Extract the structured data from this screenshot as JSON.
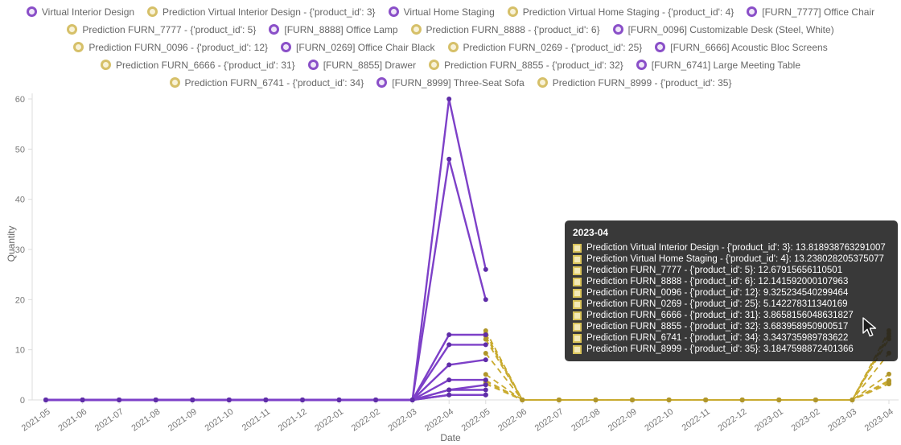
{
  "chart_data": {
    "type": "line",
    "title": "",
    "xlabel": "Date",
    "ylabel": "Quantity",
    "ylim": [
      0,
      60
    ],
    "yticks": [
      0,
      10,
      20,
      30,
      40,
      50,
      60
    ],
    "grid": false,
    "legend_position": "top",
    "colors": {
      "actual": "#7d40c8",
      "actual_point": "#5f2da8",
      "prediction": "#c9ab2f",
      "prediction_point": "#b0962a"
    },
    "x": [
      "2021-05",
      "2021-06",
      "2021-07",
      "2021-08",
      "2021-09",
      "2021-10",
      "2021-11",
      "2021-12",
      "2022-01",
      "2022-02",
      "2022-03",
      "2022-04",
      "2022-05",
      "2022-06",
      "2022-07",
      "2022-08",
      "2022-09",
      "2022-10",
      "2022-11",
      "2022-12",
      "2023-01",
      "2023-02",
      "2023-03",
      "2023-04"
    ],
    "series": [
      {
        "name": "Virtual Interior Design",
        "kind": "actual",
        "values": [
          0,
          0,
          0,
          0,
          0,
          0,
          0,
          0,
          0,
          0,
          0,
          60,
          26,
          null,
          null,
          null,
          null,
          null,
          null,
          null,
          null,
          null,
          null,
          null
        ]
      },
      {
        "name": "Virtual Home Staging",
        "kind": "actual",
        "values": [
          0,
          0,
          0,
          0,
          0,
          0,
          0,
          0,
          0,
          0,
          0,
          48,
          20,
          null,
          null,
          null,
          null,
          null,
          null,
          null,
          null,
          null,
          null,
          null
        ]
      },
      {
        "name": "[FURN_7777] Office Chair",
        "kind": "actual",
        "values": [
          0,
          0,
          0,
          0,
          0,
          0,
          0,
          0,
          0,
          0,
          0,
          13,
          13,
          null,
          null,
          null,
          null,
          null,
          null,
          null,
          null,
          null,
          null,
          null
        ]
      },
      {
        "name": "[FURN_8888] Office Lamp",
        "kind": "actual",
        "values": [
          0,
          0,
          0,
          0,
          0,
          0,
          0,
          0,
          0,
          0,
          0,
          11,
          11,
          null,
          null,
          null,
          null,
          null,
          null,
          null,
          null,
          null,
          null,
          null
        ]
      },
      {
        "name": "[FURN_0096] Customizable Desk (Steel, White)",
        "kind": "actual",
        "values": [
          0,
          0,
          0,
          0,
          0,
          0,
          0,
          0,
          0,
          0,
          0,
          7,
          8,
          null,
          null,
          null,
          null,
          null,
          null,
          null,
          null,
          null,
          null,
          null
        ]
      },
      {
        "name": "[FURN_0269] Office Chair Black",
        "kind": "actual",
        "values": [
          0,
          0,
          0,
          0,
          0,
          0,
          0,
          0,
          0,
          0,
          0,
          4,
          4,
          null,
          null,
          null,
          null,
          null,
          null,
          null,
          null,
          null,
          null,
          null
        ]
      },
      {
        "name": "[FURN_6666] Acoustic Bloc Screens",
        "kind": "actual",
        "values": [
          0,
          0,
          0,
          0,
          0,
          0,
          0,
          0,
          0,
          0,
          0,
          2,
          3,
          null,
          null,
          null,
          null,
          null,
          null,
          null,
          null,
          null,
          null,
          null
        ]
      },
      {
        "name": "[FURN_8855] Drawer",
        "kind": "actual",
        "values": [
          0,
          0,
          0,
          0,
          0,
          0,
          0,
          0,
          0,
          0,
          0,
          2,
          2,
          null,
          null,
          null,
          null,
          null,
          null,
          null,
          null,
          null,
          null,
          null
        ]
      },
      {
        "name": "[FURN_6741] Large Meeting Table",
        "kind": "actual",
        "values": [
          0,
          0,
          0,
          0,
          0,
          0,
          0,
          0,
          0,
          0,
          0,
          1,
          1,
          null,
          null,
          null,
          null,
          null,
          null,
          null,
          null,
          null,
          null,
          null
        ]
      },
      {
        "name": "[FURN_8999] Three-Seat Sofa",
        "kind": "actual",
        "values": [
          0,
          0,
          0,
          0,
          0,
          0,
          0,
          0,
          0,
          0,
          0,
          1,
          1,
          null,
          null,
          null,
          null,
          null,
          null,
          null,
          null,
          null,
          null,
          null
        ]
      },
      {
        "name": "Prediction Virtual Interior Design - {'product_id': 3}",
        "kind": "prediction",
        "values": [
          null,
          null,
          null,
          null,
          null,
          null,
          null,
          null,
          null,
          null,
          null,
          null,
          13.8,
          0,
          0,
          0,
          0,
          0,
          0,
          0,
          0,
          0,
          0,
          13.818938763291007
        ]
      },
      {
        "name": "Prediction Virtual Home Staging - {'product_id': 4}",
        "kind": "prediction",
        "values": [
          null,
          null,
          null,
          null,
          null,
          null,
          null,
          null,
          null,
          null,
          null,
          null,
          13.2,
          0,
          0,
          0,
          0,
          0,
          0,
          0,
          0,
          0,
          0,
          13.238028205375077
        ]
      },
      {
        "name": "Prediction FURN_7777 - {'product_id': 5}",
        "kind": "prediction",
        "values": [
          null,
          null,
          null,
          null,
          null,
          null,
          null,
          null,
          null,
          null,
          null,
          null,
          12.7,
          0,
          0,
          0,
          0,
          0,
          0,
          0,
          0,
          0,
          0,
          12.67915656110501
        ]
      },
      {
        "name": "Prediction FURN_8888 - {'product_id': 6}",
        "kind": "prediction",
        "values": [
          null,
          null,
          null,
          null,
          null,
          null,
          null,
          null,
          null,
          null,
          null,
          null,
          12.1,
          0,
          0,
          0,
          0,
          0,
          0,
          0,
          0,
          0,
          0,
          12.141592000107963
        ]
      },
      {
        "name": "Prediction FURN_0096 - {'product_id': 12}",
        "kind": "prediction",
        "values": [
          null,
          null,
          null,
          null,
          null,
          null,
          null,
          null,
          null,
          null,
          null,
          null,
          9.3,
          0,
          0,
          0,
          0,
          0,
          0,
          0,
          0,
          0,
          0,
          9.325234540299464
        ]
      },
      {
        "name": "Prediction FURN_0269 - {'product_id': 25}",
        "kind": "prediction",
        "values": [
          null,
          null,
          null,
          null,
          null,
          null,
          null,
          null,
          null,
          null,
          null,
          null,
          5.1,
          0,
          0,
          0,
          0,
          0,
          0,
          0,
          0,
          0,
          0,
          5.142278311340169
        ]
      },
      {
        "name": "Prediction FURN_6666 - {'product_id': 31}",
        "kind": "prediction",
        "values": [
          null,
          null,
          null,
          null,
          null,
          null,
          null,
          null,
          null,
          null,
          null,
          null,
          3.9,
          0,
          0,
          0,
          0,
          0,
          0,
          0,
          0,
          0,
          0,
          3.8658156048631827
        ]
      },
      {
        "name": "Prediction FURN_8855 - {'product_id': 32}",
        "kind": "prediction",
        "values": [
          null,
          null,
          null,
          null,
          null,
          null,
          null,
          null,
          null,
          null,
          null,
          null,
          3.7,
          0,
          0,
          0,
          0,
          0,
          0,
          0,
          0,
          0,
          0,
          3.683958950900517
        ]
      },
      {
        "name": "Prediction FURN_6741 - {'product_id': 34}",
        "kind": "prediction",
        "values": [
          null,
          null,
          null,
          null,
          null,
          null,
          null,
          null,
          null,
          null,
          null,
          null,
          3.3,
          0,
          0,
          0,
          0,
          0,
          0,
          0,
          0,
          0,
          0,
          3.343735989783622
        ]
      },
      {
        "name": "Prediction FURN_8999 - {'product_id': 35}",
        "kind": "prediction",
        "values": [
          null,
          null,
          null,
          null,
          null,
          null,
          null,
          null,
          null,
          null,
          null,
          null,
          3.2,
          0,
          0,
          0,
          0,
          0,
          0,
          0,
          0,
          0,
          0,
          3.1847598872401366
        ]
      }
    ]
  },
  "legend": {
    "items": [
      {
        "label": "Virtual Interior Design",
        "kind": "actual"
      },
      {
        "label": "Prediction Virtual Interior Design - {'product_id': 3}",
        "kind": "prediction"
      },
      {
        "label": "Virtual Home Staging",
        "kind": "actual"
      },
      {
        "label": "Prediction Virtual Home Staging - {'product_id': 4}",
        "kind": "prediction"
      },
      {
        "label": "[FURN_7777] Office Chair",
        "kind": "actual"
      },
      {
        "label": "Prediction FURN_7777 - {'product_id': 5}",
        "kind": "prediction"
      },
      {
        "label": "[FURN_8888] Office Lamp",
        "kind": "actual"
      },
      {
        "label": "Prediction FURN_8888 - {'product_id': 6}",
        "kind": "prediction"
      },
      {
        "label": "[FURN_0096] Customizable Desk (Steel, White)",
        "kind": "actual"
      },
      {
        "label": "Prediction FURN_0096 - {'product_id': 12}",
        "kind": "prediction"
      },
      {
        "label": "[FURN_0269] Office Chair Black",
        "kind": "actual"
      },
      {
        "label": "Prediction FURN_0269 - {'product_id': 25}",
        "kind": "prediction"
      },
      {
        "label": "[FURN_6666] Acoustic Bloc Screens",
        "kind": "actual"
      },
      {
        "label": "Prediction FURN_6666 - {'product_id': 31}",
        "kind": "prediction"
      },
      {
        "label": "[FURN_8855] Drawer",
        "kind": "actual"
      },
      {
        "label": "Prediction FURN_8855 - {'product_id': 32}",
        "kind": "prediction"
      },
      {
        "label": "[FURN_6741] Large Meeting Table",
        "kind": "actual"
      },
      {
        "label": "Prediction FURN_6741 - {'product_id': 34}",
        "kind": "prediction"
      },
      {
        "label": "[FURN_8999] Three-Seat Sofa",
        "kind": "actual"
      },
      {
        "label": "Prediction FURN_8999 - {'product_id': 35}",
        "kind": "prediction"
      }
    ]
  },
  "tooltip": {
    "title": "2023-04",
    "rows": [
      {
        "label": "Prediction Virtual Interior Design - {'product_id': 3}",
        "value": "13.818938763291007"
      },
      {
        "label": "Prediction Virtual Home Staging - {'product_id': 4}",
        "value": "13.238028205375077"
      },
      {
        "label": "Prediction FURN_7777 - {'product_id': 5}",
        "value": "12.67915656110501"
      },
      {
        "label": "Prediction FURN_8888 - {'product_id': 6}",
        "value": "12.141592000107963"
      },
      {
        "label": "Prediction FURN_0096 - {'product_id': 12}",
        "value": "9.325234540299464"
      },
      {
        "label": "Prediction FURN_0269 - {'product_id': 25}",
        "value": "5.142278311340169"
      },
      {
        "label": "Prediction FURN_6666 - {'product_id': 31}",
        "value": "3.8658156048631827"
      },
      {
        "label": "Prediction FURN_8855 - {'product_id': 32}",
        "value": "3.683958950900517"
      },
      {
        "label": "Prediction FURN_6741 - {'product_id': 34}",
        "value": "3.343735989783622"
      },
      {
        "label": "Prediction FURN_8999 - {'product_id': 35}",
        "value": "3.1847598872401366"
      }
    ]
  }
}
